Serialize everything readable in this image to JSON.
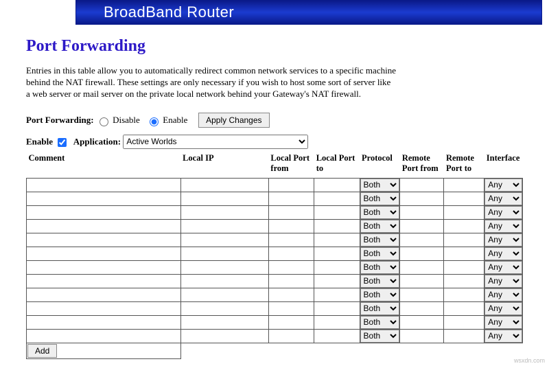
{
  "banner": {
    "title": "BroadBand Router"
  },
  "page": {
    "title": "Port Forwarding",
    "description": "Entries in this table allow you to automatically redirect common network services to a specific machine behind the NAT firewall. These settings are only necessary if you wish to host some sort of server like a web server or mail server on the private local network behind your Gateway's NAT firewall."
  },
  "controls": {
    "pf_label": "Port Forwarding:",
    "disable_label": "Disable",
    "enable_label": "Enable",
    "pf_value": "enable",
    "apply_label": "Apply Changes",
    "enable_row_label": "Enable",
    "enable_row_checked": true,
    "application_label": "Application:",
    "application_value": "Active Worlds",
    "add_label": "Add"
  },
  "table": {
    "headers": {
      "comment": "Comment",
      "local_ip": "Local IP",
      "local_port_from": "Local Port from",
      "local_port_to": "Local Port to",
      "protocol": "Protocol",
      "remote_port_from": "Remote Port from",
      "remote_port_to": "Remote Port to",
      "interface": "Interface"
    },
    "protocol_default": "Both",
    "interface_default": "Any",
    "row_count": 12
  },
  "watermark": "wsxdn.com"
}
